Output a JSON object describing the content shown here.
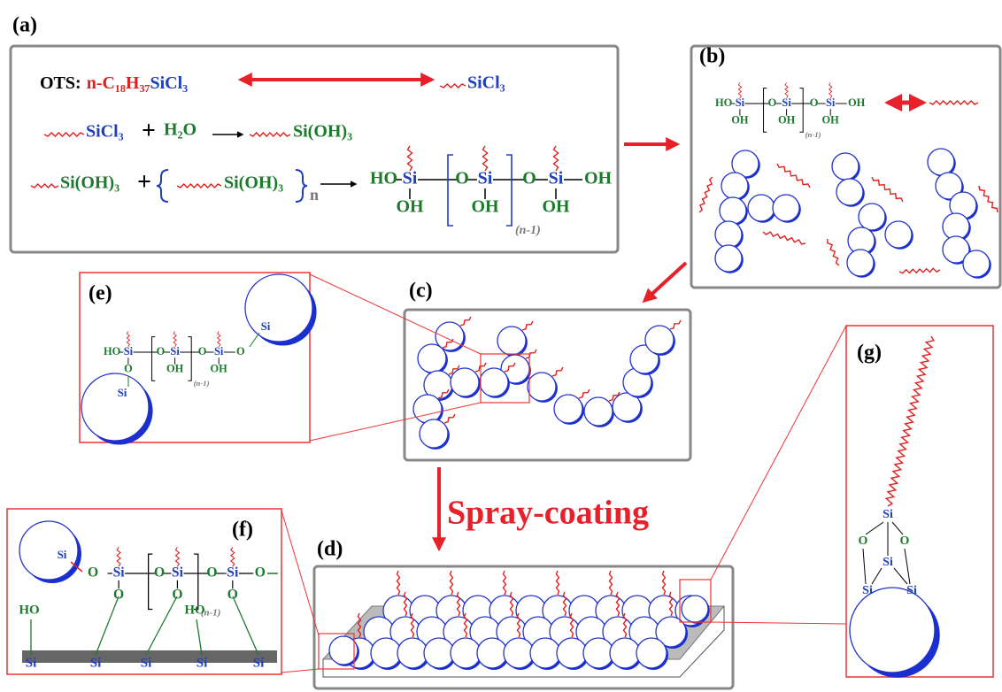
{
  "panel_labels": {
    "a": "(a)",
    "b": "(b)",
    "c": "(c)",
    "d": "(d)",
    "e": "(e)",
    "f": "(f)",
    "g": "(g)"
  },
  "reaction": {
    "ots": "OTS:",
    "alkyl": "n-C₁₈H₃₇",
    "silane": "SiCl₃",
    "product_silane": "SiCl₃",
    "hydrolysis": {
      "silane": "SiCl₃",
      "plus": "+",
      "water": "H₂O",
      "silanol": "Si(OH)₃"
    },
    "condensation": {
      "silanol": "Si(OH)₃",
      "plus": "+",
      "monomer": "Si(OH)₃",
      "n": "n",
      "chain": {
        "atoms": [
          "HO",
          "Si",
          "OH",
          "O",
          "Si",
          "OH",
          "O",
          "Si",
          "OH",
          "OH"
        ],
        "repeat": "(n-1)"
      }
    }
  },
  "panel_b": {
    "chain": {
      "atoms": [
        "HO",
        "Si",
        "OH",
        "O",
        "Si",
        "OH",
        "O",
        "Si",
        "OH",
        "OH"
      ],
      "repeat": "(n-1)"
    }
  },
  "panel_e": {
    "chain": {
      "atoms": [
        "HO",
        "Si",
        "O",
        "O",
        "Si",
        "OH",
        "O",
        "Si",
        "OH",
        "O"
      ],
      "repeat": "(n-1)"
    },
    "particle_atoms": [
      "Si",
      "Si"
    ]
  },
  "panel_f": {
    "chain": {
      "atoms": [
        "O",
        "Si",
        "O",
        "O",
        "Si",
        "O",
        "O",
        "Si",
        "O",
        "O"
      ],
      "repeat": "(n-1)"
    },
    "particle_atoms": [
      "Si"
    ],
    "surface_atoms": [
      "HO",
      "Si",
      "Si",
      "Si",
      "HO",
      "Si",
      "Si"
    ]
  },
  "panel_g": {
    "atoms": [
      "Si",
      "O",
      "O",
      "Si",
      "Si",
      "Si"
    ]
  },
  "process_label": "Spray-coating"
}
